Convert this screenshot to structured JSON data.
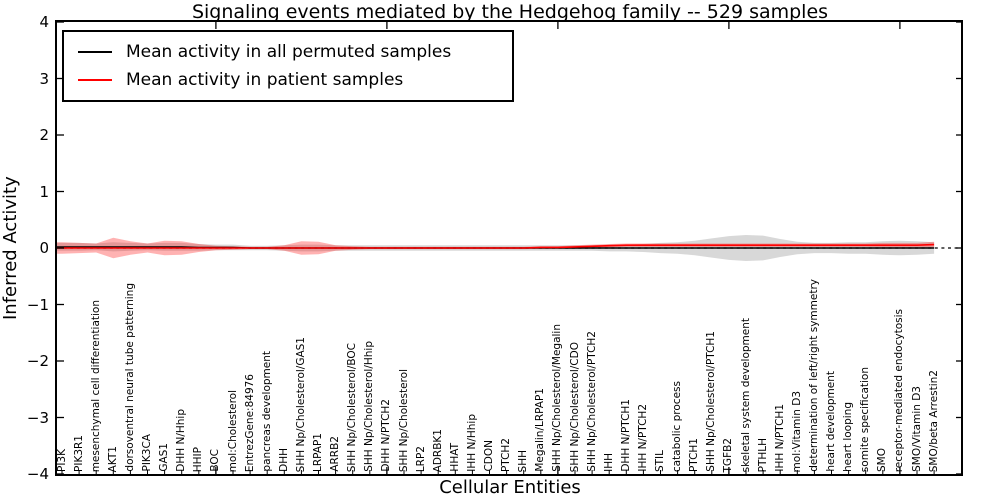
{
  "chart": {
    "title": "Signaling events mediated by the Hedgehog family -- 529 samples",
    "xlabel": "Cellular Entities",
    "ylabel": "Inferred Activity"
  },
  "legend": {
    "entries": [
      {
        "label": "Mean activity in all permuted samples",
        "color": "#000000"
      },
      {
        "label": "Mean activity in patient samples",
        "color": "#ff0000"
      }
    ]
  },
  "chart_data": {
    "type": "line",
    "title": "Signaling events mediated by the Hedgehog family -- 529 samples",
    "xlabel": "Cellular Entities",
    "ylabel": "Inferred Activity",
    "ylim": [
      -4,
      4
    ],
    "yticks": [
      "4",
      "3",
      "2",
      "1",
      "0",
      "−1",
      "−2",
      "−3",
      "−4"
    ],
    "ytick_values": [
      4,
      3,
      2,
      1,
      0,
      -1,
      -2,
      -3,
      -4
    ],
    "xticks_major_at": [
      10,
      20,
      30,
      40,
      50
    ],
    "grid": false,
    "legend_position": "upper-left",
    "zero_line": {
      "style": "dashed",
      "color": "#000000",
      "y": 0
    },
    "entities": [
      "PI3K",
      "PIK3R1",
      "mesenchymal cell differentiation",
      "AKT1",
      "dorsoventral neural tube patterning",
      "PIK3CA",
      "GAS1",
      "DHH N/Hhip",
      "HHIP",
      "BOC",
      "mol:Cholesterol",
      "EntrezGene:84976",
      "pancreas development",
      "DHH",
      "SHH Np/Cholesterol/GAS1",
      "LRPAP1",
      "ARRB2",
      "SHH Np/Cholesterol/BOC",
      "SHH Np/Cholesterol/Hhip",
      "DHH N/PTCH2",
      "SHH Np/Cholesterol",
      "LRP2",
      "ADRBK1",
      "HHAT",
      "IHH N/Hhip",
      "CDON",
      "PTCH2",
      "SHH",
      "Megalin/LRPAP1",
      "SHH Np/Cholesterol/Megalin",
      "SHH Np/Cholesterol/CDO",
      "SHH Np/Cholesterol/PTCH2",
      "IHH",
      "DHH N/PTCH1",
      "IHH N/PTCH2",
      "STIL",
      "catabolic process",
      "PTCH1",
      "SHH Np/Cholesterol/PTCH1",
      "TGFB2",
      "skeletal system development",
      "PTHLH",
      "IHH N/PTCH1",
      "mol:Vitamin D3",
      "determination of left/right symmetry",
      "heart development",
      "heart looping",
      "somite specification",
      "SMO",
      "receptor-mediated endocytosis",
      "SMO/Vitamin D3",
      "SMO/beta Arrestin2"
    ],
    "series": [
      {
        "name": "Mean activity in all permuted samples",
        "color": "#000000",
        "band_color": "rgba(125,125,125,0.30)",
        "values": [
          0.02,
          0.02,
          0.02,
          0.02,
          0.02,
          0.02,
          0.02,
          0.02,
          0.01,
          0.01,
          0.01,
          0,
          0,
          0,
          0,
          0,
          0,
          0,
          0,
          0,
          0,
          0,
          0,
          0,
          0,
          0,
          0,
          0,
          0,
          0,
          0,
          0,
          0,
          0,
          0,
          0,
          0,
          0,
          0,
          0,
          0,
          0,
          0,
          0,
          0,
          0,
          0,
          0,
          0,
          0,
          0,
          0
        ],
        "band_halfwidth": [
          0.07,
          0.07,
          0.06,
          0.08,
          0.07,
          0.06,
          0.07,
          0.07,
          0.06,
          0.05,
          0.05,
          0.04,
          0.04,
          0.05,
          0.06,
          0.06,
          0.05,
          0.05,
          0.05,
          0.05,
          0.05,
          0.05,
          0.05,
          0.05,
          0.05,
          0.05,
          0.05,
          0.05,
          0.05,
          0.05,
          0.05,
          0.05,
          0.06,
          0.06,
          0.07,
          0.09,
          0.1,
          0.13,
          0.17,
          0.21,
          0.23,
          0.22,
          0.16,
          0.11,
          0.09,
          0.09,
          0.1,
          0.1,
          0.12,
          0.13,
          0.12,
          0.1
        ]
      },
      {
        "name": "Mean activity in patient samples",
        "color": "#ff0000",
        "band_color": "rgba(255,0,0,0.30)",
        "values": [
          0,
          0,
          0,
          0,
          0,
          0,
          0,
          0,
          0,
          0,
          0,
          0,
          0,
          0,
          0,
          0,
          0,
          0,
          0,
          0,
          0,
          0,
          0,
          0,
          0,
          0,
          0,
          0,
          0.01,
          0.01,
          0.02,
          0.03,
          0.04,
          0.05,
          0.05,
          0.05,
          0.05,
          0.05,
          0.05,
          0.05,
          0.05,
          0.05,
          0.05,
          0.05,
          0.05,
          0.05,
          0.05,
          0.05,
          0.05,
          0.05,
          0.05,
          0.06
        ],
        "band_halfwidth": [
          0.1,
          0.09,
          0.08,
          0.18,
          0.12,
          0.08,
          0.13,
          0.12,
          0.07,
          0.04,
          0.03,
          0.02,
          0.02,
          0.05,
          0.12,
          0.11,
          0.05,
          0.03,
          0.02,
          0.02,
          0.02,
          0.02,
          0.02,
          0.02,
          0.02,
          0.02,
          0.02,
          0.02,
          0.02,
          0.02,
          0.03,
          0.03,
          0.03,
          0.03,
          0.03,
          0.03,
          0.03,
          0.03,
          0.03,
          0.03,
          0.03,
          0.03,
          0.03,
          0.03,
          0.03,
          0.03,
          0.03,
          0.03,
          0.04,
          0.04,
          0.04,
          0.05
        ]
      }
    ]
  }
}
